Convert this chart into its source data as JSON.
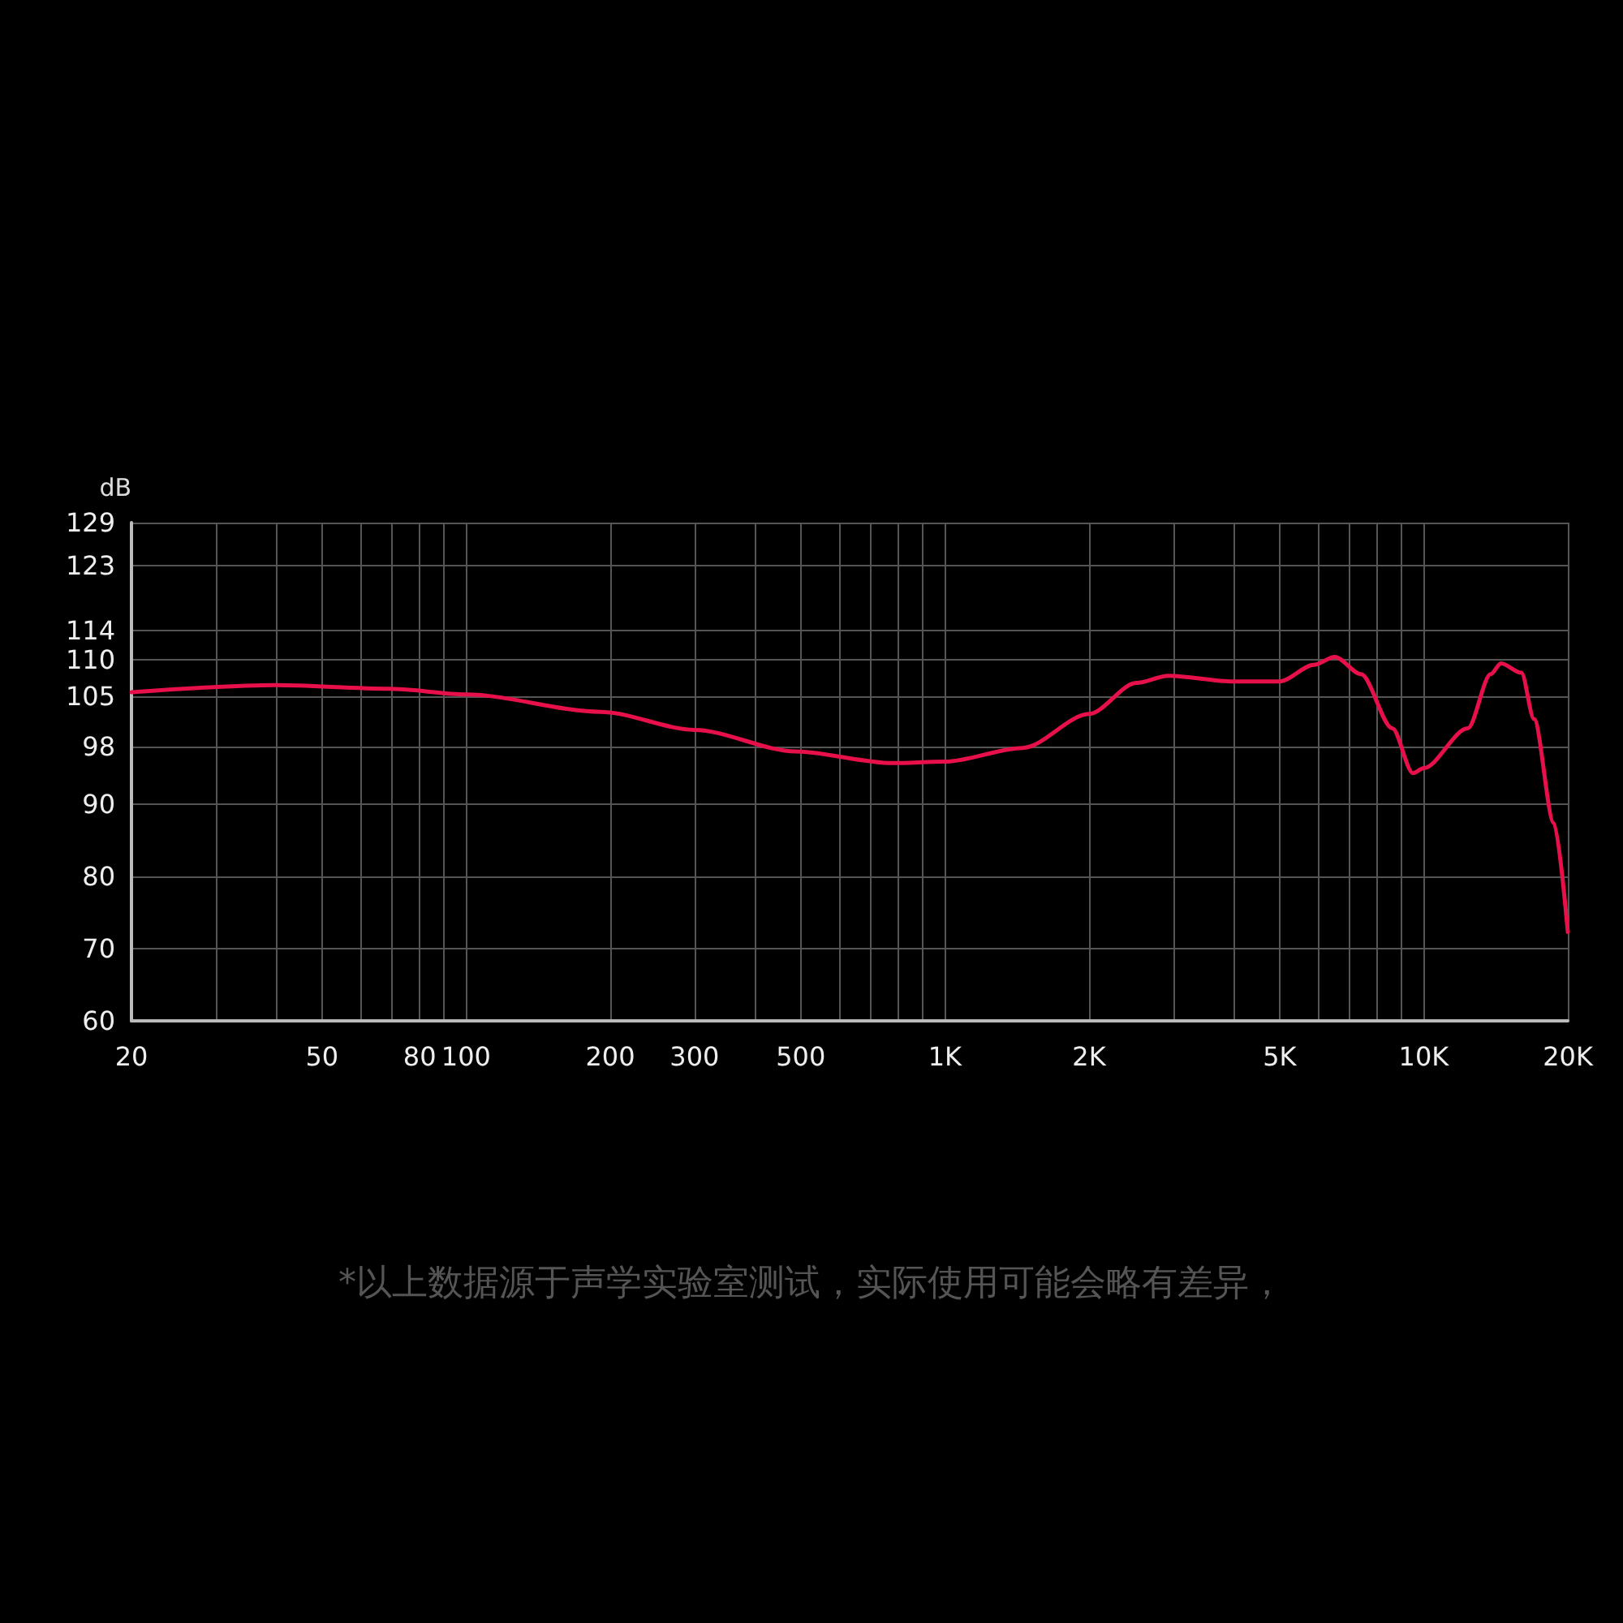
{
  "chart_data": {
    "type": "line",
    "ylabel": "dB",
    "log": "x",
    "grid": true,
    "marker": "none",
    "line_style": "solid",
    "annotations": [
      "*以上数据源于声学实验室测试，实际使用可能会略有差异，"
    ],
    "xlim": [
      20,
      20000
    ],
    "xticks": [
      20,
      {
        "value": 30,
        "label": null
      },
      {
        "value": 40,
        "label": null
      },
      50,
      {
        "value": 60,
        "label": null
      },
      {
        "value": 70,
        "label": null
      },
      80,
      {
        "value": 90,
        "label": null
      },
      100,
      200,
      300,
      {
        "value": 400,
        "label": null
      },
      500,
      {
        "value": 600,
        "label": null
      },
      {
        "value": 700,
        "label": null
      },
      {
        "value": 800,
        "label": null
      },
      {
        "value": 900,
        "label": null
      },
      {
        "value": 1000,
        "label": "1K"
      },
      {
        "value": 2000,
        "label": "2K"
      },
      {
        "value": 3000,
        "label": null
      },
      {
        "value": 4000,
        "label": null
      },
      {
        "value": 5000,
        "label": "5K"
      },
      {
        "value": 6000,
        "label": null
      },
      {
        "value": 7000,
        "label": null
      },
      {
        "value": 8000,
        "label": null
      },
      {
        "value": 9000,
        "label": null
      },
      {
        "value": 10000,
        "label": "10K"
      },
      {
        "value": 20000,
        "label": "20K"
      }
    ],
    "ylim": [
      60,
      129
    ],
    "yticks": [
      60,
      70,
      80,
      90,
      98,
      105,
      110,
      114,
      123,
      129
    ],
    "series": [
      {
        "color": "#e8104a",
        "x": [
          20,
          40,
          69,
          100,
          191,
          300,
          488,
          776,
          1000,
          1454,
          2000,
          2512,
          2930,
          4000,
          5000,
          5900,
          6520,
          7400,
          8600,
          9500,
          10000,
          12360,
          13800,
          14500,
          16000,
          17000,
          18700,
          20000
        ],
        "values": [
          105.5,
          106.5,
          106,
          105.2,
          102.8,
          100.3,
          97.3,
          95.7,
          95.9,
          97.8,
          102.5,
          106.8,
          107.8,
          107,
          107,
          109.3,
          110.4,
          108,
          100.5,
          94.3,
          95,
          100.5,
          108,
          109.5,
          108.2,
          101.8,
          87.4,
          72.3
        ]
      }
    ]
  }
}
